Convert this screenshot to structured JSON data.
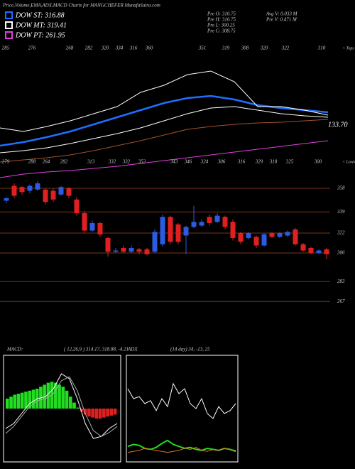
{
  "header": {
    "title": "Price,Volume,EMA,ADX,MACD Charts for MANGCHEFER MunafaSutra.com",
    "legend": [
      {
        "label": "DOW ST: 316.88",
        "color": "#1e6fff"
      },
      {
        "label": "DOW MT: 319.41",
        "color": "#ffffff"
      },
      {
        "label": "DOW PT: 261.95",
        "color": "#e040e0"
      }
    ],
    "info": [
      "Pre  O: 310.75",
      "Pre  H: 310.75",
      "Pre  L: 300.25",
      "Pre  C: 308.75",
      "Avg V: 0.033 M",
      "Pre  V: 0.471 M"
    ]
  },
  "chart_data": [
    {
      "type": "line",
      "ylim": [
        0,
        100
      ],
      "labels_top": [
        "285",
        "276",
        "268",
        "282",
        "320",
        "334",
        "316",
        "360",
        "351",
        "319",
        "308",
        "320",
        "322",
        "310"
      ],
      "labels_bottom": [
        "279",
        "288",
        "264",
        "282",
        "313",
        "332",
        "332",
        "352",
        "343",
        "346",
        "324",
        "306",
        "316",
        "329",
        "318",
        "325",
        "300"
      ],
      "annotations": [
        "133.70",
        "< Tops",
        "< Lows"
      ],
      "series": [
        {
          "color": "#e040e0",
          "values": [
            5,
            7.5,
            9,
            10,
            11.5,
            13,
            15,
            17,
            19,
            21,
            23,
            25,
            27,
            29,
            31
          ]
        },
        {
          "color": "#a0522d",
          "values": [
            16,
            17.5,
            19,
            21,
            24,
            27.5,
            31,
            35,
            39,
            41,
            42.5,
            43.5,
            44,
            45,
            46
          ]
        },
        {
          "color": "#ffffff",
          "values": [
            22.5,
            24,
            26,
            29,
            32.5,
            36,
            40,
            45,
            50,
            54,
            55,
            52.5,
            50,
            48.5,
            47.5
          ]
        },
        {
          "color": "#1e6fff",
          "values": [
            27.5,
            30,
            33.5,
            37.5,
            42.5,
            47.5,
            52.5,
            57.5,
            61,
            62.5,
            60,
            56,
            54,
            52.5,
            51
          ]
        },
        {
          "color": "#ffffff",
          "values": [
            40,
            37.5,
            41,
            45,
            50,
            55,
            65,
            70,
            77.5,
            80,
            72.5,
            55,
            55,
            52.5,
            49
          ]
        }
      ]
    },
    {
      "type": "candlestick",
      "up_color": "#2a5be0",
      "down_color": "#e02020",
      "grid_color": "#7a3315",
      "grid": true,
      "ylim": [
        258,
        364
      ],
      "yticks": [
        358,
        339,
        322,
        306,
        283,
        267
      ],
      "open": [
        348,
        360,
        359,
        356,
        357,
        357,
        356,
        353,
        358,
        349,
        338,
        324,
        330,
        318,
        307,
        310,
        307,
        309,
        309,
        307,
        313,
        335,
        329,
        320,
        327,
        328,
        335,
        331,
        335,
        331,
        322,
        318,
        319,
        312,
        322,
        319,
        320,
        325,
        313,
        310,
        306,
        309
      ],
      "high": [
        351,
        362,
        360,
        361,
        364,
        358,
        358,
        360,
        359,
        351,
        340,
        332,
        331,
        319,
        310,
        312,
        312,
        310,
        310,
        325,
        337,
        336,
        330,
        328,
        344,
        333,
        337,
        338,
        336,
        333,
        323,
        323,
        320,
        322,
        323,
        323,
        324,
        326,
        314,
        311,
        309,
        310
      ],
      "low": [
        346,
        350,
        353,
        354,
        356,
        345,
        347,
        352,
        350,
        336,
        322,
        323,
        319,
        303,
        306,
        306,
        306,
        305,
        304,
        306,
        311,
        313,
        313,
        305,
        326,
        327,
        328,
        330,
        325,
        316,
        313,
        317,
        310,
        311,
        318,
        318,
        319,
        312,
        307,
        305,
        305,
        301
      ],
      "close": [
        350,
        352,
        355,
        360,
        362,
        347,
        349,
        359,
        352,
        338,
        324,
        330,
        321,
        307,
        308,
        307,
        310,
        307,
        305,
        323,
        335,
        315,
        315,
        327,
        331,
        331,
        330,
        336,
        327,
        318,
        315,
        322,
        312,
        321,
        319,
        322,
        323,
        313,
        308,
        306,
        308,
        305
      ]
    },
    {
      "type": "macd",
      "title": "MACD:",
      "subtitle": "( 12,26,9 ) 314.17,  318.88,  -4.21",
      "ylim": [
        -50,
        50
      ],
      "pos_color": "#22dd22",
      "neg_color": "#e02020",
      "histogram": [
        10,
        12,
        14,
        15,
        16,
        17,
        18,
        19,
        20,
        22,
        24,
        26,
        27,
        26,
        24,
        22,
        18,
        12,
        6,
        1,
        -3,
        -6,
        -8,
        -9,
        -10,
        -10,
        -9,
        -8,
        -7,
        -6
      ],
      "series": [
        {
          "color": "#ffffff",
          "values": [
            -20,
            -15,
            -5,
            5,
            10,
            12,
            20,
            35,
            30,
            10,
            -15,
            -30,
            -28,
            -20,
            -15
          ]
        },
        {
          "color": "#aaaaaa",
          "values": [
            -25,
            -18,
            -8,
            2,
            8,
            10,
            15,
            28,
            32,
            18,
            -5,
            -22,
            -28,
            -24,
            -18
          ]
        }
      ]
    },
    {
      "type": "adx",
      "title": "ADX",
      "subtitle": "(14  day) 34,  -13,  25",
      "ylim": [
        0,
        100
      ],
      "series": [
        {
          "color": "#ffffff",
          "values": [
            70,
            60,
            62,
            55,
            58,
            48,
            60,
            52,
            75,
            65,
            70,
            55,
            50,
            60,
            45,
            40,
            52,
            45,
            48,
            55
          ]
        },
        {
          "color": "#22dd22",
          "values": [
            12,
            14,
            13,
            10,
            9,
            11,
            15,
            18,
            14,
            12,
            10,
            11,
            9,
            8,
            10,
            9,
            8,
            10,
            9,
            7
          ]
        },
        {
          "color": "#e07020",
          "values": [
            6,
            7,
            8,
            10,
            9,
            8,
            7,
            6,
            7,
            8,
            10,
            9,
            11,
            8,
            7,
            9,
            8,
            10,
            9,
            8
          ]
        }
      ]
    }
  ]
}
